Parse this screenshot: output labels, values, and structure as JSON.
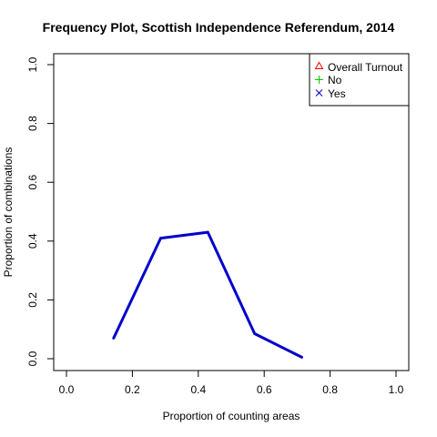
{
  "chart_data": {
    "type": "line",
    "title": "Frequency Plot, Scottish Independence Referendum, 2014",
    "xlabel": "Proportion of counting areas",
    "ylabel": "Proportion of combinations",
    "xlim": [
      0,
      1
    ],
    "ylim": [
      0,
      1
    ],
    "x_ticks": [
      "0.0",
      "0.2",
      "0.4",
      "0.6",
      "0.8",
      "1.0"
    ],
    "y_ticks": [
      "0.0",
      "0.2",
      "0.4",
      "0.6",
      "0.8",
      "1.0"
    ],
    "grid": false,
    "legend_position": "top-right",
    "legend": [
      {
        "label": "Overall Turnout",
        "color": "#ff0000",
        "marker": "triangle"
      },
      {
        "label": "No",
        "color": "#00cc00",
        "marker": "plus"
      },
      {
        "label": "Yes",
        "color": "#0000cc",
        "marker": "cross"
      }
    ],
    "series": [
      {
        "name": "Yes",
        "color": "#0000cc",
        "x": [
          0.143,
          0.286,
          0.429,
          0.571,
          0.714
        ],
        "y": [
          0.07,
          0.41,
          0.43,
          0.085,
          0.005
        ]
      }
    ]
  }
}
